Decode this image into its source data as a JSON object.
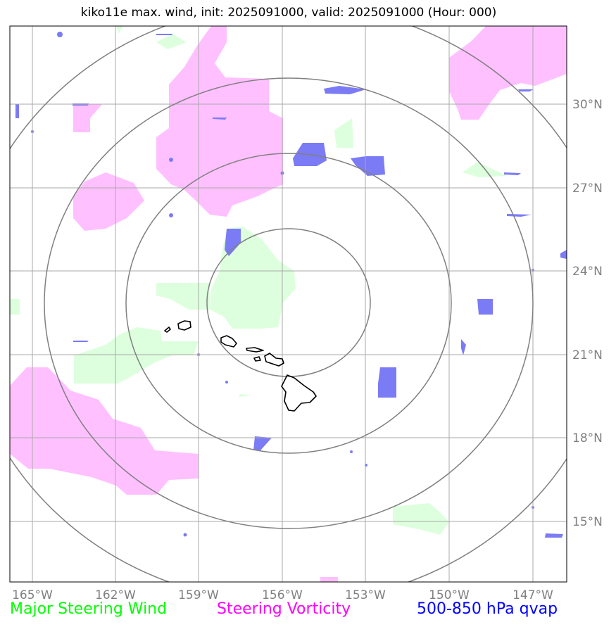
{
  "title": "kiko11e max. wind, init: 2025091000, valid: 2025091000 (Hour: 000)",
  "x_ticks": [
    "165°W",
    "162°W",
    "159°W",
    "156°W",
    "153°W",
    "150°W",
    "147°W"
  ],
  "y_ticks": [
    "30°N",
    "27°N",
    "24°N",
    "21°N",
    "18°N",
    "15°N"
  ],
  "legend": {
    "wind": {
      "label": "Major Steering Wind",
      "color": "#00ff00"
    },
    "vorticity": {
      "label": "Steering Vorticity",
      "color": "#ff00ff"
    },
    "qvap": {
      "label": "500-850 hPa qvap",
      "color": "#0000ff"
    }
  },
  "colors": {
    "wind_fill": "#ddffdd",
    "vorticity_fill": "#ffc0ff",
    "qvap_fill": "#7b7bf5",
    "grid": "#a9a9a9",
    "range_rings": "#808080",
    "coastline": "#000000"
  }
}
